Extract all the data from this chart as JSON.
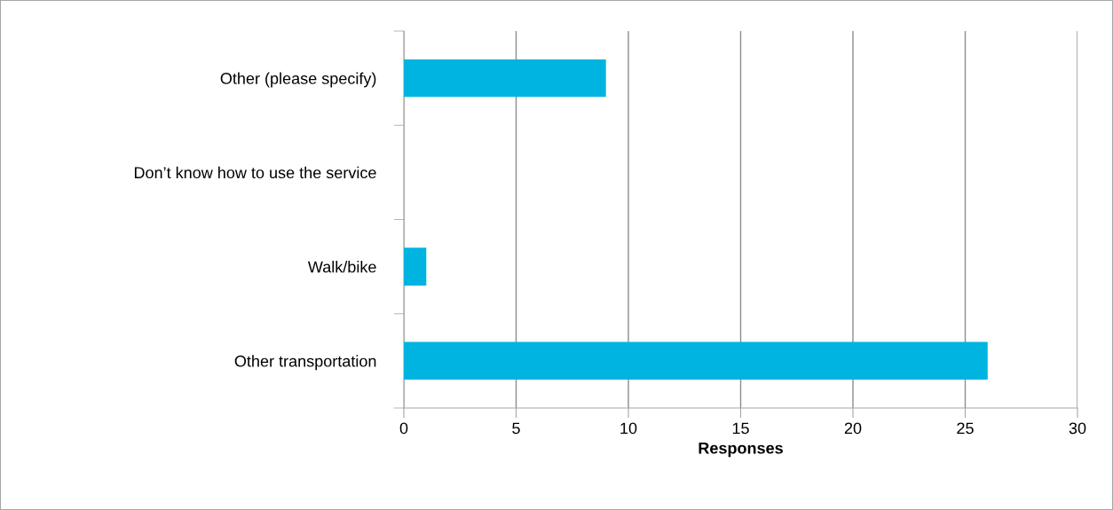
{
  "chart_data": {
    "type": "bar",
    "orientation": "horizontal",
    "xlabel": "Responses",
    "categories": [
      "Other (please specify)",
      "Don’t know how to use the service",
      "Walk/bike",
      "Other transportation"
    ],
    "values": [
      9,
      0,
      1,
      26
    ],
    "color": "#00b4e1",
    "xlim": [
      0,
      30
    ],
    "xticks": [
      0,
      5,
      10,
      15,
      20,
      25,
      30
    ],
    "grid": "x",
    "legend": false
  }
}
